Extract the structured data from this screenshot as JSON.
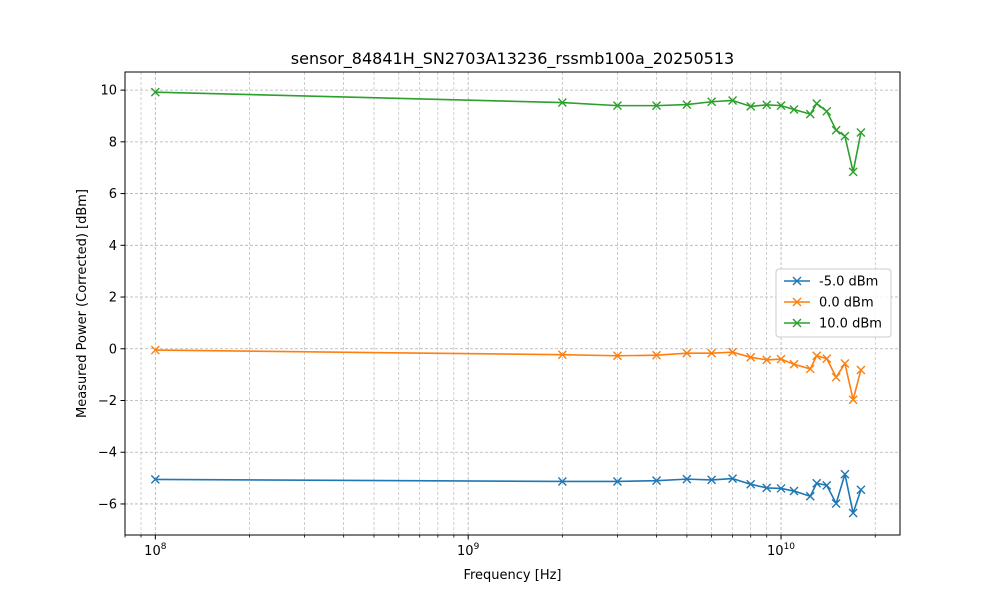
{
  "chart_data": {
    "type": "line",
    "title": "sensor_84841H_SN2703A13236_rssmb100a_20250513",
    "xlabel": "Frequency [Hz]",
    "ylabel": "Measured Power (Corrected) [dBm]",
    "x_scale": "log",
    "xlim": [
      80000000,
      24000000000
    ],
    "ylim": [
      -7.2,
      10.7
    ],
    "y_ticks": [
      -6,
      -4,
      -2,
      0,
      2,
      4,
      6,
      8,
      10
    ],
    "y_tick_labels": [
      "−6",
      "−4",
      "−2",
      "0",
      "2",
      "4",
      "6",
      "8",
      "10"
    ],
    "x_ticks": [
      {
        "value": 100000000,
        "base": "10",
        "exp": "8"
      },
      {
        "value": 1000000000,
        "base": "10",
        "exp": "9"
      },
      {
        "value": 10000000000,
        "base": "10",
        "exp": "10"
      }
    ],
    "grid": true,
    "legend_position": "center-right",
    "x": [
      100000000,
      2000000000,
      3000000000,
      4000000000,
      5000000000,
      6000000000,
      7000000000,
      8000000000,
      9000000000,
      10000000000,
      11000000000,
      12400000000,
      13000000000,
      14000000000,
      15000000000,
      16000000000,
      17000000000,
      18000000000
    ],
    "series": [
      {
        "name": "-5.0 dBm",
        "color": "#1f77b4",
        "marker": "x",
        "values": [
          -5.05,
          -5.13,
          -5.13,
          -5.1,
          -5.04,
          -5.07,
          -5.02,
          -5.24,
          -5.38,
          -5.4,
          -5.5,
          -5.7,
          -5.2,
          -5.28,
          -5.98,
          -4.85,
          -6.35,
          -5.45
        ]
      },
      {
        "name": "0.0 dBm",
        "color": "#ff7f0e",
        "marker": "x",
        "values": [
          -0.05,
          -0.23,
          -0.27,
          -0.25,
          -0.17,
          -0.17,
          -0.13,
          -0.33,
          -0.43,
          -0.4,
          -0.6,
          -0.78,
          -0.27,
          -0.38,
          -1.1,
          -0.57,
          -1.97,
          -0.82
        ]
      },
      {
        "name": "10.0 dBm",
        "color": "#2ca02c",
        "marker": "x",
        "values": [
          9.92,
          9.52,
          9.4,
          9.4,
          9.44,
          9.55,
          9.6,
          9.37,
          9.43,
          9.4,
          9.25,
          9.07,
          9.48,
          9.18,
          8.45,
          8.22,
          6.84,
          8.36
        ]
      }
    ]
  }
}
